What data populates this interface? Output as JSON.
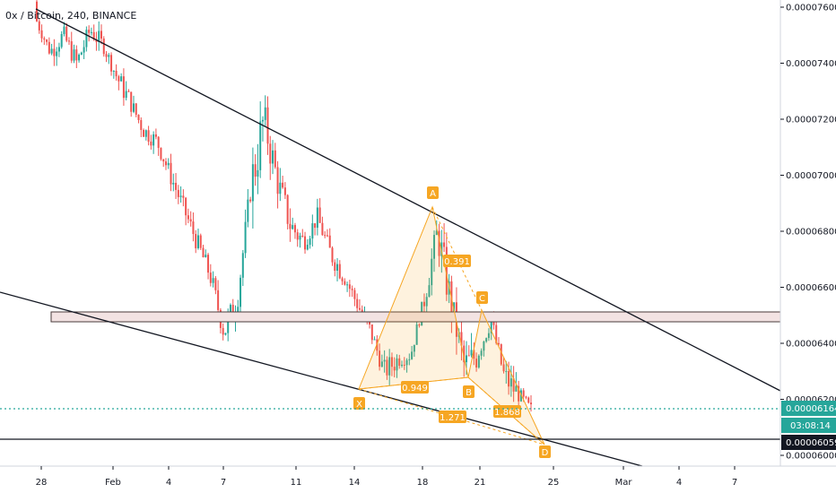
{
  "chart_data": {
    "type": "candlestick",
    "title": "0x / Bitcoin, 240, BINANCE",
    "ylim": [
      5.9e-05,
      7.62e-05
    ],
    "y_ticks": [
      "0.00007600",
      "0.00007400",
      "0.00007200",
      "0.00007000",
      "0.00006800",
      "0.00006600",
      "0.00006400",
      "0.00006200",
      "0.00006000"
    ],
    "x_ticks": [
      "28",
      "Feb",
      "4",
      "7",
      "11",
      "14",
      "18",
      "21",
      "25",
      "Mar",
      "4",
      "7"
    ],
    "price_label": "0.00006164",
    "countdown_label": "03:08:14",
    "price": 6.164e-05,
    "level_label": "0.00006059",
    "level": 6.059e-05,
    "support_zone": [
      6.474e-05,
      6.508e-05
    ],
    "grid": false,
    "candles_ohlc_sample": [
      [
        7.62e-05,
        7.64e-05,
        7.52e-05,
        7.55e-05
      ],
      [
        7.55e-05,
        7.58e-05,
        7.4e-05,
        7.44e-05
      ],
      [
        7.44e-05,
        7.56e-05,
        7.38e-05,
        7.5e-05
      ],
      [
        7.5e-05,
        7.53e-05,
        7.35e-05,
        7.4e-05
      ],
      [
        7.4e-05,
        7.56e-05,
        7.38e-05,
        7.52e-05
      ],
      [
        7.52e-05,
        7.55e-05,
        7.42e-05,
        7.46e-05
      ],
      [
        7.46e-05,
        7.5e-05,
        7.3e-05,
        7.35e-05
      ],
      [
        7.35e-05,
        7.38e-05,
        7.22e-05,
        7.26e-05
      ],
      [
        7.26e-05,
        7.28e-05,
        7.12e-05,
        7.16e-05
      ],
      [
        7.16e-05,
        7.22e-05,
        7.06e-05,
        7.12e-05
      ],
      [
        7.12e-05,
        7.14e-05,
        6.96e-05,
        7e-05
      ],
      [
        7e-05,
        7.02e-05,
        6.84e-05,
        6.88e-05
      ],
      [
        6.88e-05,
        6.9e-05,
        6.72e-05,
        6.76e-05
      ],
      [
        6.76e-05,
        6.8e-05,
        6.6e-05,
        6.64e-05
      ],
      [
        6.64e-05,
        6.66e-05,
        6.4e-05,
        6.44e-05
      ],
      [
        6.44e-05,
        6.6e-05,
        6.37e-05,
        6.55e-05
      ],
      [
        6.55e-05,
        7e-05,
        6.5e-05,
        6.95e-05
      ],
      [
        6.95e-05,
        7.25e-05,
        6.9e-05,
        7.2e-05
      ],
      [
        7.2e-05,
        7.22e-05,
        6.94e-05,
        6.98e-05
      ],
      [
        6.98e-05,
        7.02e-05,
        6.78e-05,
        6.82e-05
      ],
      [
        6.82e-05,
        6.86e-05,
        6.7e-05,
        6.76e-05
      ],
      [
        6.76e-05,
        6.9e-05,
        6.72e-05,
        6.85e-05
      ],
      [
        6.85e-05,
        6.88e-05,
        6.68e-05,
        6.72e-05
      ],
      [
        6.72e-05,
        6.76e-05,
        6.6e-05,
        6.64e-05
      ],
      [
        6.64e-05,
        6.68e-05,
        6.5e-05,
        6.54e-05
      ],
      [
        6.54e-05,
        6.56e-05,
        6.4e-05,
        6.44e-05
      ],
      [
        6.44e-05,
        6.46e-05,
        6.25e-05,
        6.3e-05
      ],
      [
        6.3e-05,
        6.38e-05,
        6.24e-05,
        6.34e-05
      ],
      [
        6.34e-05,
        6.4e-05,
        6.28e-05,
        6.36e-05
      ],
      [
        6.36e-05,
        6.6e-05,
        6.34e-05,
        6.56e-05
      ],
      [
        6.56e-05,
        6.88e-05,
        6.5e-05,
        6.8e-05
      ],
      [
        6.8e-05,
        6.82e-05,
        6.5e-05,
        6.54e-05
      ],
      [
        6.54e-05,
        6.58e-05,
        6.28e-05,
        6.32e-05
      ],
      [
        6.32e-05,
        6.4e-05,
        6.25e-05,
        6.36e-05
      ],
      [
        6.36e-05,
        6.52e-05,
        6.32e-05,
        6.48e-05
      ],
      [
        6.48e-05,
        6.5e-05,
        6.25e-05,
        6.28e-05
      ],
      [
        6.28e-05,
        6.32e-05,
        6.18e-05,
        6.22e-05
      ],
      [
        6.22e-05,
        6.28e-05,
        6.12e-05,
        6.16e-05
      ]
    ],
    "pattern": {
      "points": [
        {
          "label": "X",
          "x": "14",
          "y": 6.232e-05
        },
        {
          "label": "A",
          "x": "18",
          "y": 6.89e-05
        },
        {
          "label": "B",
          "x": "20",
          "y": 6.265e-05
        },
        {
          "label": "C",
          "x": "21",
          "y": 6.51e-05
        },
        {
          "label": "D",
          "x": "24",
          "y": 6.04e-05
        }
      ],
      "ratios": [
        "0.949",
        "0.391",
        "1.271",
        "1.868"
      ]
    }
  }
}
